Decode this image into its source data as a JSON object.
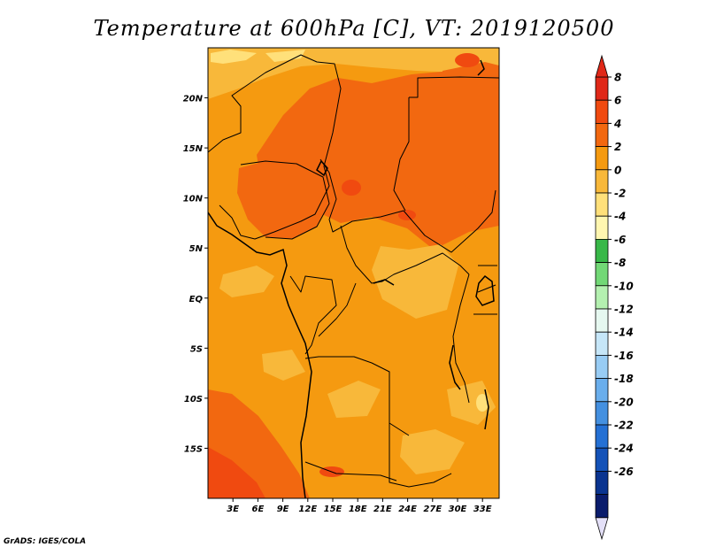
{
  "chart_data": {
    "type": "heatmap",
    "title": "Temperature at 600hPa [C], VT: 2019120500",
    "variable": "Temperature",
    "level": "600hPa",
    "units": "C",
    "valid_time": "2019120500",
    "x_range_lon": [
      0,
      35
    ],
    "y_range_lat": [
      -20,
      25
    ],
    "x_ticks": [
      {
        "value": 3,
        "label": "3E"
      },
      {
        "value": 6,
        "label": "6E"
      },
      {
        "value": 9,
        "label": "9E"
      },
      {
        "value": 12,
        "label": "12E"
      },
      {
        "value": 15,
        "label": "15E"
      },
      {
        "value": 18,
        "label": "18E"
      },
      {
        "value": 21,
        "label": "21E"
      },
      {
        "value": 24,
        "label": "24E"
      },
      {
        "value": 27,
        "label": "27E"
      },
      {
        "value": 30,
        "label": "30E"
      },
      {
        "value": 33,
        "label": "33E"
      }
    ],
    "y_ticks": [
      {
        "value": 20,
        "label": "20N"
      },
      {
        "value": 15,
        "label": "15N"
      },
      {
        "value": 10,
        "label": "10N"
      },
      {
        "value": 5,
        "label": "5N"
      },
      {
        "value": 0,
        "label": "EQ"
      },
      {
        "value": -5,
        "label": "5S"
      },
      {
        "value": -10,
        "label": "10S"
      },
      {
        "value": -15,
        "label": "15S"
      }
    ],
    "colorbar": {
      "levels": [
        8,
        6,
        4,
        2,
        0,
        -2,
        -4,
        -6,
        -8,
        -10,
        -12,
        -14,
        -16,
        -18,
        -20,
        -22,
        -24,
        -26
      ],
      "labels": [
        "8",
        "6",
        "4",
        "2",
        "0",
        "-2",
        "-4",
        "-6",
        "-8",
        "-10",
        "-12",
        "-14",
        "-16",
        "-18",
        "-20",
        "-22",
        "-24",
        "-26"
      ],
      "colors": [
        "#e02818",
        "#f04a10",
        "#f26810",
        "#f59a10",
        "#f8b83a",
        "#ffe07a",
        "#fff6b0",
        "#38b848",
        "#72d876",
        "#b4f0b0",
        "#e6f8f0",
        "#c6e6f8",
        "#98ccf4",
        "#6aaeec",
        "#4490e0",
        "#2470d4",
        "#1452b8",
        "#0a3490",
        "#0a1c6c"
      ],
      "over_color": "#e02818",
      "under_color": "#e4e0f8"
    },
    "regions": [
      {
        "name": "background",
        "value": 3,
        "color": "#f59a10"
      },
      {
        "name": "sahara-north",
        "value": 1.5,
        "color": "#f8b83a"
      },
      {
        "name": "niger-chad-belt",
        "value": 5,
        "color": "#f26810"
      },
      {
        "name": "nigeria-cameroon",
        "value": 5,
        "color": "#f26810"
      },
      {
        "name": "sudan-plateau",
        "value": 4,
        "color": "#f26810"
      },
      {
        "name": "hot-pockets",
        "value": 6,
        "color": "#f04a10"
      },
      {
        "name": "southwest-atlantic",
        "value": 5,
        "color": "#f26810"
      },
      {
        "name": "southwest-core",
        "value": 6.5,
        "color": "#f04a10"
      },
      {
        "name": "cool-patches",
        "value": 1,
        "color": "#f8b83a"
      },
      {
        "name": "coldest-cells",
        "value": -1,
        "color": "#ffe07a"
      }
    ]
  },
  "footer": "GrADS: IGES/COLA"
}
